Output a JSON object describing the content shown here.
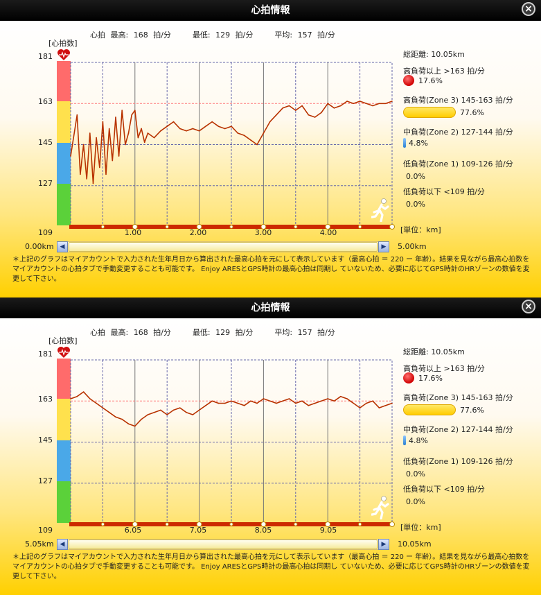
{
  "dialog": {
    "title": "心拍情報",
    "close_label": "×"
  },
  "stats": {
    "label": "心拍",
    "max_label": "最高:",
    "max_value": "168",
    "min_label": "最低:",
    "min_value": "129",
    "avg_label": "平均:",
    "avg_value": "157",
    "unit": "拍/分"
  },
  "axis": {
    "ylabel": "[心拍数]",
    "yticks": [
      "181",
      "163",
      "145",
      "127",
      "109"
    ],
    "unit_label": "[単位：km]"
  },
  "colors": {
    "zone_red": "#ff6666",
    "zone_yellow": "#ffe14d",
    "zone_blue": "#4aa8e8",
    "zone_green": "#5bd13a",
    "line": "#b83200",
    "baseline": "#cc2a00",
    "grid": "#6666aa",
    "threshold": "#ff7a7a"
  },
  "sidebar": {
    "total_distance": "総距離: 10.05km",
    "zones": [
      {
        "label": "高負荷以上 >163 拍/分",
        "percent": "17.6%",
        "indicator": "red-dot-icon"
      },
      {
        "label": "高負荷(Zone 3)  145-163 拍/分",
        "percent": "77.6%",
        "indicator": "yellow-pill-icon"
      },
      {
        "label": "中負荷(Zone 2) 127-144 拍/分",
        "percent": "4.8%",
        "indicator": "blue-pill-icon"
      },
      {
        "label": "低負荷(Zone 1) 109-126 拍/分",
        "percent": "0.0%",
        "indicator": ""
      },
      {
        "label": "低負荷以下 <109 拍/分",
        "percent": "0.0%",
        "indicator": ""
      }
    ]
  },
  "note": "＊上記のグラフはマイアカウントで入力された生年月日から算出された最高心拍を元にして表示しています（最高心拍 ＝ 220 ー 年齢）。結果を見ながら最高心拍数をマイアカウントの心拍タブで手動変更することも可能です。 Enjoy ARESとGPS時計の最高心拍は同期し ていないため、必要に応じてGPS時計のHRゾーンの数値を変更して下さい。",
  "panels": [
    {
      "scroll_min": "0.00km",
      "scroll_max": "5.00km",
      "scroll_left_label": "◀",
      "scroll_right_label": "▶",
      "scroll_position": 0.0,
      "xticks": [
        "1.00",
        "2.00",
        "3.00",
        "4.00"
      ]
    },
    {
      "scroll_min": "5.05km",
      "scroll_max": "10.05km",
      "scroll_left_label": "◀",
      "scroll_right_label": "▶",
      "scroll_position": 1.0,
      "xticks": [
        "6.05",
        "7.05",
        "8.05",
        "9.05"
      ]
    }
  ],
  "chart_data": [
    {
      "type": "line",
      "xlabel": "[単位：km]",
      "ylabel": "[心拍数]",
      "xlim": [
        0.0,
        5.0
      ],
      "ylim": [
        109,
        181
      ],
      "x": [
        0.0,
        0.1,
        0.15,
        0.2,
        0.25,
        0.3,
        0.35,
        0.4,
        0.45,
        0.5,
        0.55,
        0.6,
        0.65,
        0.7,
        0.75,
        0.8,
        0.85,
        0.9,
        0.95,
        1.0,
        1.05,
        1.1,
        1.15,
        1.2,
        1.3,
        1.4,
        1.5,
        1.6,
        1.7,
        1.8,
        1.9,
        2.0,
        2.1,
        2.2,
        2.3,
        2.4,
        2.5,
        2.6,
        2.7,
        2.8,
        2.9,
        3.0,
        3.1,
        3.2,
        3.3,
        3.4,
        3.5,
        3.6,
        3.7,
        3.8,
        3.9,
        4.0,
        4.1,
        4.2,
        4.3,
        4.4,
        4.5,
        4.6,
        4.7,
        4.8,
        4.9,
        5.0
      ],
      "y": [
        140,
        158,
        132,
        145,
        130,
        150,
        128,
        148,
        135,
        155,
        132,
        152,
        138,
        157,
        140,
        160,
        145,
        150,
        158,
        160,
        148,
        152,
        146,
        150,
        148,
        151,
        153,
        155,
        152,
        151,
        152,
        151,
        153,
        155,
        153,
        152,
        153,
        150,
        149,
        147,
        145,
        150,
        155,
        158,
        161,
        162,
        160,
        162,
        158,
        157,
        159,
        163,
        161,
        162,
        164,
        163,
        164,
        163,
        162,
        163,
        163,
        164
      ]
    },
    {
      "type": "line",
      "xlabel": "[単位：km]",
      "ylabel": "[心拍数]",
      "xlim": [
        5.05,
        10.05
      ],
      "ylim": [
        109,
        181
      ],
      "x": [
        5.05,
        5.15,
        5.25,
        5.35,
        5.45,
        5.55,
        5.65,
        5.75,
        5.85,
        5.95,
        6.05,
        6.15,
        6.25,
        6.35,
        6.45,
        6.55,
        6.65,
        6.75,
        6.85,
        6.95,
        7.05,
        7.15,
        7.25,
        7.35,
        7.45,
        7.55,
        7.65,
        7.75,
        7.85,
        7.95,
        8.05,
        8.15,
        8.25,
        8.35,
        8.45,
        8.55,
        8.65,
        8.75,
        8.85,
        8.95,
        9.05,
        9.15,
        9.25,
        9.35,
        9.45,
        9.55,
        9.65,
        9.75,
        9.85,
        9.95,
        10.05
      ],
      "y": [
        164,
        165,
        167,
        164,
        162,
        160,
        158,
        156,
        155,
        153,
        152,
        155,
        157,
        158,
        159,
        157,
        159,
        160,
        158,
        157,
        159,
        161,
        163,
        162,
        162,
        163,
        162,
        161,
        163,
        162,
        164,
        163,
        162,
        163,
        164,
        162,
        163,
        161,
        162,
        163,
        164,
        163,
        165,
        164,
        162,
        160,
        162,
        163,
        160,
        161,
        162
      ]
    }
  ]
}
